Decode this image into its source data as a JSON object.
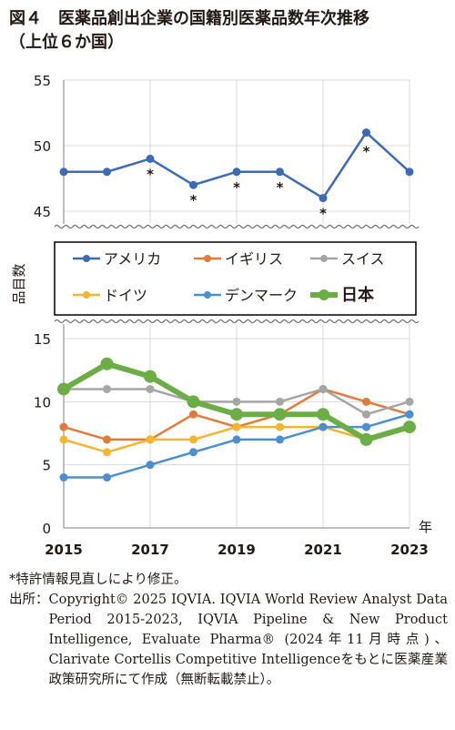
{
  "title": {
    "line1": "図４　医薬品創出企業の国籍別医薬品数年次推移",
    "line2": "（上位６か国）"
  },
  "chart_data": {
    "type": "line",
    "ylabel": "品目数",
    "xlabel": "年",
    "x": [
      2015,
      2016,
      2017,
      2018,
      2019,
      2020,
      2021,
      2022,
      2023
    ],
    "x_tick_labels": [
      "2015",
      "2017",
      "2019",
      "2021",
      "2023"
    ],
    "broken_axis": true,
    "upper_panel": {
      "ylim": [
        45,
        55
      ],
      "yticks": [
        "45",
        "50",
        "55"
      ]
    },
    "lower_panel": {
      "ylim": [
        0,
        15
      ],
      "yticks": [
        "0",
        "5",
        "10",
        "15"
      ]
    },
    "grid": true,
    "legend_position": "middle (in axis break)",
    "series": [
      {
        "name": "アメリカ",
        "color": "#3c6bb6",
        "panel": "upper",
        "bold": false,
        "values": [
          48,
          48,
          49,
          47,
          48,
          48,
          46,
          51,
          48
        ]
      },
      {
        "name": "イギリス",
        "color": "#e07b39",
        "panel": "lower",
        "bold": false,
        "values": [
          8,
          7,
          7,
          9,
          8,
          9,
          11,
          10,
          9
        ]
      },
      {
        "name": "スイス",
        "color": "#a5a5a5",
        "panel": "lower",
        "bold": false,
        "values": [
          11,
          11,
          11,
          10,
          10,
          10,
          11,
          9,
          10
        ]
      },
      {
        "name": "ドイツ",
        "color": "#f6b42f",
        "panel": "lower",
        "bold": false,
        "values": [
          7,
          6,
          7,
          7,
          8,
          8,
          8,
          7,
          8
        ]
      },
      {
        "name": "デンマーク",
        "color": "#4b8fce",
        "panel": "lower",
        "bold": false,
        "values": [
          4,
          4,
          5,
          6,
          7,
          7,
          8,
          8,
          9
        ]
      },
      {
        "name": "日本",
        "color": "#6aae45",
        "panel": "lower",
        "bold": true,
        "values": [
          11,
          13,
          12,
          10,
          9,
          9,
          9,
          7,
          8
        ]
      }
    ],
    "annotations": [
      {
        "text": "*",
        "x": 2017,
        "series": "アメリカ"
      },
      {
        "text": "*",
        "x": 2018,
        "series": "アメリカ"
      },
      {
        "text": "*",
        "x": 2019,
        "series": "アメリカ"
      },
      {
        "text": "*",
        "x": 2020,
        "series": "アメリカ"
      },
      {
        "text": "*",
        "x": 2021,
        "series": "アメリカ"
      },
      {
        "text": "*",
        "x": 2022,
        "series": "アメリカ"
      }
    ]
  },
  "notes": {
    "footnote": "*特許情報見直しにより修正。",
    "source_label": "出所：",
    "source_text": "Copyright© 2025 IQVIA. IQVIA World Review Analyst Data Period 2015-2023, IQVIA Pipeline & New Product Intelligence, Evaluate Pharma® (2024年11月時点)、Clarivate Cortellis Competitive Intelligenceをもとに医薬産業政策研究所にて作成（無断転載禁止）。"
  }
}
